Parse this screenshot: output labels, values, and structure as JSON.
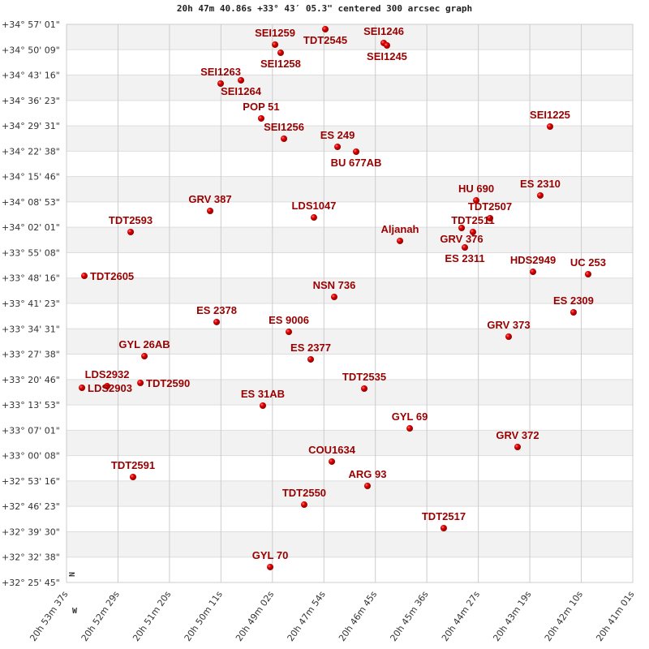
{
  "chart_data": {
    "type": "scatter",
    "title": "20h 47m 40.86s +33° 43′ 05.3\" centered 300 arcsec graph",
    "compass": {
      "north": "N",
      "west": "W"
    },
    "xlim": [
      "20:53:37",
      "20:41:01"
    ],
    "ylim": [
      "+32:25:45",
      "+34:57:01"
    ],
    "grid": true,
    "x_ticks": [
      "20h 53m 37s",
      "20h 52m 29s",
      "20h 51m 20s",
      "20h 50m 11s",
      "20h 49m 02s",
      "20h 47m 54s",
      "20h 46m 45s",
      "20h 45m 36s",
      "20h 44m 27s",
      "20h 43m 19s",
      "20h 42m 10s",
      "20h 41m 01s"
    ],
    "y_ticks": [
      "+34° 57' 01\"",
      "+34° 50' 09\"",
      "+34° 43' 16\"",
      "+34° 36' 23\"",
      "+34° 29' 31\"",
      "+34° 22' 38\"",
      "+34° 15' 46\"",
      "+34° 08' 53\"",
      "+34° 02' 01\"",
      "+33° 55' 08\"",
      "+33° 48' 16\"",
      "+33° 41' 23\"",
      "+33° 34' 31\"",
      "+33° 27' 38\"",
      "+33° 20' 46\"",
      "+33° 13' 53\"",
      "+33° 07' 01\"",
      "+33° 00' 08\"",
      "+32° 53' 16\"",
      "+32° 46' 23\"",
      "+32° 39' 30\"",
      "+32° 32' 38\"",
      "+32° 25' 45\""
    ],
    "colors": {
      "marker": "#dd0000",
      "label": "#990000",
      "band": "#f2f2f2",
      "grid": "#cccccc"
    },
    "points": [
      {
        "name": "TDT2545",
        "ra": "20:47:51.5",
        "dec": "+34:55:42"
      },
      {
        "name": "SEI1259",
        "ra": "20:48:58.6",
        "dec": "+34:51:31"
      },
      {
        "name": "SEI1258",
        "ra": "20:48:51.1",
        "dec": "+34:49:19"
      },
      {
        "name": "SEI1246",
        "ra": "20:46:33.5",
        "dec": "+34:51:58"
      },
      {
        "name": "SEI1245",
        "ra": "20:46:29.2",
        "dec": "+34:51:18"
      },
      {
        "name": "SEI1263",
        "ra": "20:50:11.2",
        "dec": "+34:40:58"
      },
      {
        "name": "SEI1264",
        "ra": "20:49:44.1",
        "dec": "+34:41:51"
      },
      {
        "name": "POP  51",
        "ra": "20:49:17.1",
        "dec": "+34:31:31"
      },
      {
        "name": "SEI1256",
        "ra": "20:48:46.7",
        "dec": "+34:26:01"
      },
      {
        "name": "ES  249",
        "ra": "20:47:35.2",
        "dec": "+34:23:49"
      },
      {
        "name": "BU  677AB",
        "ra": "20:47:10.3",
        "dec": "+34:22:30"
      },
      {
        "name": "SEI1225",
        "ra": "20:42:51.5",
        "dec": "+34:29:19"
      },
      {
        "name": "ES 2310",
        "ra": "20:43:04.5",
        "dec": "+34:10:38"
      },
      {
        "name": "HU  690",
        "ra": "20:44:30.0",
        "dec": "+34:09:18"
      },
      {
        "name": "TDT2507",
        "ra": "20:44:11.6",
        "dec": "+34:04:28"
      },
      {
        "name": "GRV 376",
        "ra": "20:44:49.5",
        "dec": "+34:01:50"
      },
      {
        "name": "TDT2511",
        "ra": "20:44:34.4",
        "dec": "+34:00:44"
      },
      {
        "name": "ES 2311",
        "ra": "20:44:45.2",
        "dec": "+33:56:33"
      },
      {
        "name": "Aljanah",
        "ra": "20:46:11.8",
        "dec": "+33:58:19"
      },
      {
        "name": "LDS1047",
        "ra": "20:48:06.7",
        "dec": "+34:04:41"
      },
      {
        "name": "GRV 387",
        "ra": "20:50:25.3",
        "dec": "+34:06:27"
      },
      {
        "name": "TDT2593",
        "ra": "20:52:11.4",
        "dec": "+34:00:44"
      },
      {
        "name": "TDT2605",
        "ra": "20:53:13.2",
        "dec": "+33:48:51"
      },
      {
        "name": "HDS2949",
        "ra": "20:43:14.2",
        "dec": "+33:49:57"
      },
      {
        "name": "UC  253",
        "ra": "20:42:00.6",
        "dec": "+33:49:18"
      },
      {
        "name": "NSN 736",
        "ra": "20:47:39.6",
        "dec": "+33:43:08"
      },
      {
        "name": "ES 2378",
        "ra": "20:50:16.6",
        "dec": "+33:36:20"
      },
      {
        "name": "ES 9006",
        "ra": "20:48:40.2",
        "dec": "+33:33:41"
      },
      {
        "name": "ES 2309",
        "ra": "20:42:20.1",
        "dec": "+33:38:58"
      },
      {
        "name": "GRV 373",
        "ra": "20:43:46.7",
        "dec": "+33:32:22"
      },
      {
        "name": "GYL  26AB",
        "ra": "20:51:53.0",
        "dec": "+33:27:05"
      },
      {
        "name": "ES 2377",
        "ra": "20:48:11.0",
        "dec": "+33:26:13"
      },
      {
        "name": "TDT2535",
        "ra": "20:46:59.5",
        "dec": "+33:18:18"
      },
      {
        "name": "LDS2903",
        "ra": "20:53:16.4",
        "dec": "+33:18:31"
      },
      {
        "name": "LDS2932",
        "ra": "20:52:42.8",
        "dec": "+33:18:57"
      },
      {
        "name": "TDT2590",
        "ra": "20:51:58.4",
        "dec": "+33:19:50"
      },
      {
        "name": "ES   31AB",
        "ra": "20:49:14.9",
        "dec": "+33:13:41"
      },
      {
        "name": "GYL  69",
        "ra": "20:45:58.8",
        "dec": "+33:07:31"
      },
      {
        "name": "GRV 372",
        "ra": "20:43:34.8",
        "dec": "+33:02:28"
      },
      {
        "name": "COU1634",
        "ra": "20:47:42.8",
        "dec": "+32:58:31"
      },
      {
        "name": "TDT2591",
        "ra": "20:52:08.2",
        "dec": "+32:54:20"
      },
      {
        "name": "ARG  93",
        "ra": "20:46:55.2",
        "dec": "+32:51:55"
      },
      {
        "name": "TDT2550",
        "ra": "20:48:19.7",
        "dec": "+32:46:51"
      },
      {
        "name": "TDT2517",
        "ra": "20:45:13.4",
        "dec": "+32:40:29"
      },
      {
        "name": "GYL  70",
        "ra": "20:49:05.1",
        "dec": "+32:29:56"
      }
    ]
  }
}
